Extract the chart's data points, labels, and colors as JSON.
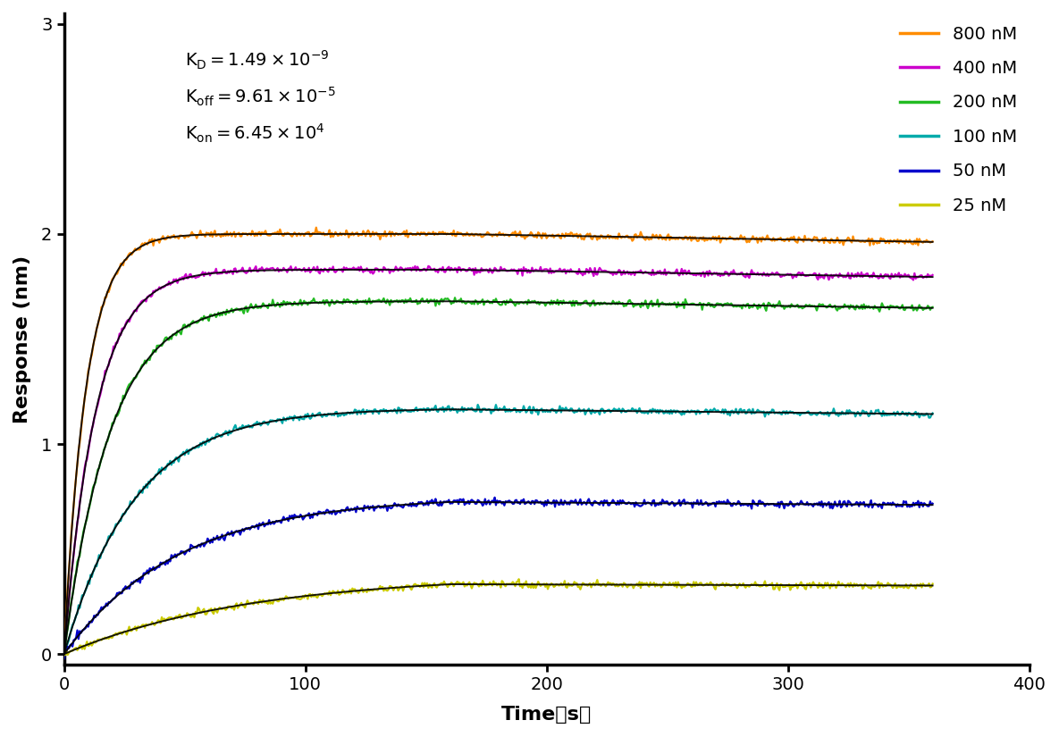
{
  "ylabel": "Response (nm)",
  "xlim": [
    0,
    400
  ],
  "ylim": [
    -0.05,
    3.05
  ],
  "xticks": [
    0,
    100,
    200,
    300,
    400
  ],
  "yticks": [
    0,
    1,
    2,
    3
  ],
  "series": [
    {
      "label": "800 nM",
      "color": "#FF8C00",
      "Rmax_eq": 2.0,
      "kobs": 0.11,
      "t_assoc": 160,
      "t_end": 360
    },
    {
      "label": "400 nM",
      "color": "#CC00CC",
      "Rmax_eq": 1.83,
      "kobs": 0.076,
      "t_assoc": 160,
      "t_end": 360
    },
    {
      "label": "200 nM",
      "color": "#22BB22",
      "Rmax_eq": 1.68,
      "kobs": 0.052,
      "t_assoc": 160,
      "t_end": 360
    },
    {
      "label": "100 nM",
      "color": "#00AAAA",
      "Rmax_eq": 1.17,
      "kobs": 0.034,
      "t_assoc": 160,
      "t_end": 360
    },
    {
      "label": "50 nM",
      "color": "#0000CC",
      "Rmax_eq": 0.75,
      "kobs": 0.021,
      "t_assoc": 160,
      "t_end": 360
    },
    {
      "label": "25 nM",
      "color": "#CCCC00",
      "Rmax_eq": 0.38,
      "kobs": 0.013,
      "t_assoc": 160,
      "t_end": 360
    }
  ],
  "koff": 9.61e-05,
  "fit_color": "#000000",
  "noise_amplitude": 0.008,
  "background_color": "#ffffff",
  "legend_fontsize": 14,
  "axis_label_fontsize": 16,
  "tick_fontsize": 14,
  "annotation_fontsize": 14,
  "linewidth_data": 1.6,
  "linewidth_fit": 1.4
}
